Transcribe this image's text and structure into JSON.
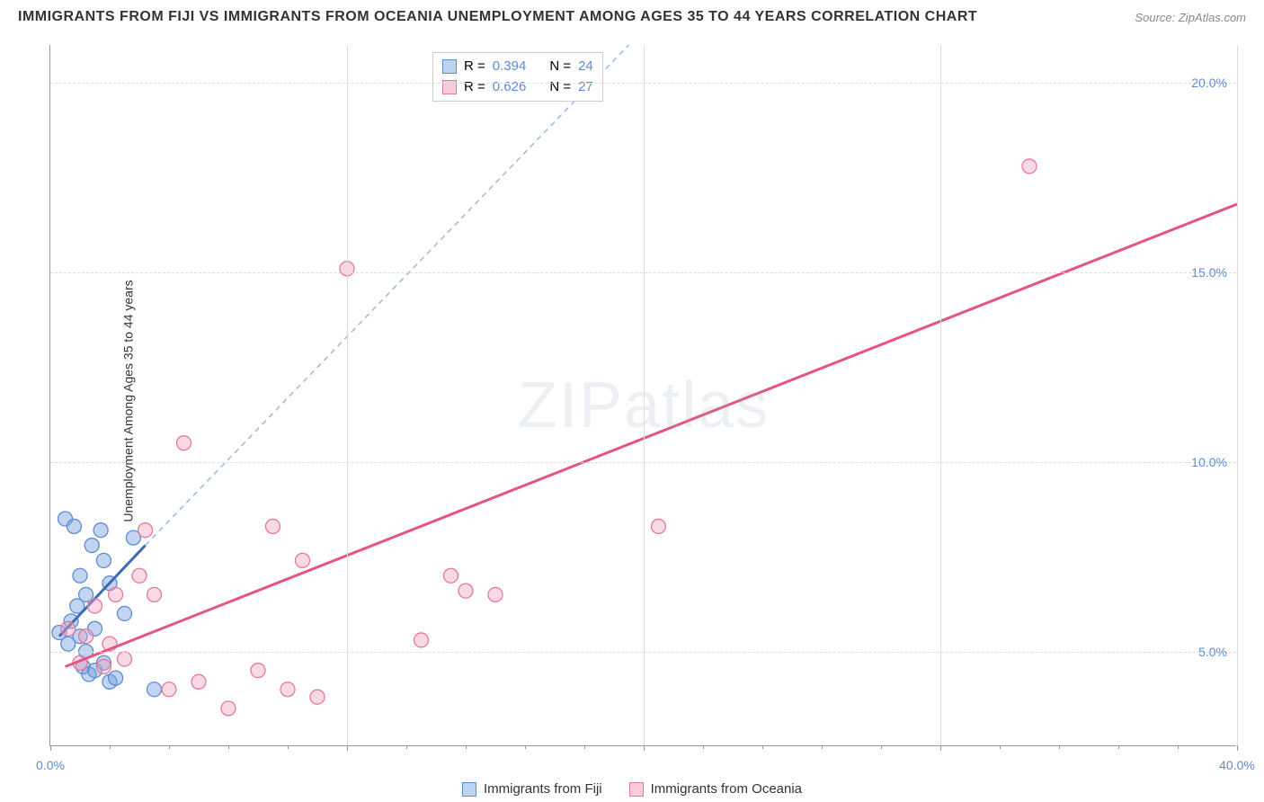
{
  "title": "IMMIGRANTS FROM FIJI VS IMMIGRANTS FROM OCEANIA UNEMPLOYMENT AMONG AGES 35 TO 44 YEARS CORRELATION CHART",
  "source": "Source: ZipAtlas.com",
  "y_axis_label": "Unemployment Among Ages 35 to 44 years",
  "watermark": "ZIPatlas",
  "chart": {
    "type": "scatter",
    "x_domain": [
      0,
      40
    ],
    "y_domain": [
      2.5,
      21
    ],
    "y_ticks": [
      5,
      10,
      15,
      20
    ],
    "y_tick_labels": [
      "5.0%",
      "10.0%",
      "15.0%",
      "20.0%"
    ],
    "x_ticks": [
      0,
      10,
      20,
      30,
      40
    ],
    "x_tick_labels": [
      "0.0%",
      "",
      "",
      "",
      "40.0%"
    ],
    "x_minor_ticks": [
      2,
      4,
      6,
      8,
      12,
      14,
      16,
      18,
      22,
      24,
      26,
      28,
      32,
      34,
      36,
      38
    ],
    "grid_color": "#dddddd",
    "background_color": "#ffffff",
    "axis_color": "#999999",
    "series": [
      {
        "name": "Immigrants from Fiji",
        "marker_fill": "rgba(120,160,220,0.45)",
        "marker_stroke": "#5b8dd6",
        "marker_radius": 8,
        "line_solid_color": "#3d6bb5",
        "line_dash_color": "#9bb8e0",
        "swatch_fill": "#bdd4f0",
        "swatch_border": "#5b8dd6",
        "R": "0.394",
        "N": "24",
        "points": [
          [
            0.3,
            5.5
          ],
          [
            0.5,
            8.5
          ],
          [
            0.6,
            5.2
          ],
          [
            0.7,
            5.8
          ],
          [
            0.8,
            8.3
          ],
          [
            0.9,
            6.2
          ],
          [
            1.0,
            5.4
          ],
          [
            1.0,
            7.0
          ],
          [
            1.1,
            4.6
          ],
          [
            1.2,
            5.0
          ],
          [
            1.2,
            6.5
          ],
          [
            1.3,
            4.4
          ],
          [
            1.4,
            7.8
          ],
          [
            1.5,
            4.5
          ],
          [
            1.5,
            5.6
          ],
          [
            1.7,
            8.2
          ],
          [
            1.8,
            4.7
          ],
          [
            1.8,
            7.4
          ],
          [
            2.0,
            4.2
          ],
          [
            2.0,
            6.8
          ],
          [
            2.2,
            4.3
          ],
          [
            2.5,
            6.0
          ],
          [
            2.8,
            8.0
          ],
          [
            3.5,
            4.0
          ]
        ],
        "trend_solid": {
          "x1": 0.3,
          "y1": 5.4,
          "x2": 3.2,
          "y2": 7.8
        },
        "trend_dash": {
          "x1": 3.2,
          "y1": 7.8,
          "x2": 19.5,
          "y2": 21.0
        }
      },
      {
        "name": "Immigrants from Oceania",
        "marker_fill": "rgba(240,160,190,0.4)",
        "marker_stroke": "#e6779d",
        "marker_radius": 8,
        "line_solid_color": "#e6557f",
        "line_dash_color": "#f0a8c0",
        "swatch_fill": "#f5cdd9",
        "swatch_border": "#e6779d",
        "R": "0.626",
        "N": "27",
        "points": [
          [
            0.6,
            5.6
          ],
          [
            1.0,
            4.7
          ],
          [
            1.2,
            5.4
          ],
          [
            1.5,
            6.2
          ],
          [
            1.8,
            4.6
          ],
          [
            2.0,
            5.2
          ],
          [
            2.2,
            6.5
          ],
          [
            2.5,
            4.8
          ],
          [
            3.0,
            7.0
          ],
          [
            3.2,
            8.2
          ],
          [
            3.5,
            6.5
          ],
          [
            4.0,
            4.0
          ],
          [
            4.5,
            10.5
          ],
          [
            5.0,
            4.2
          ],
          [
            6.0,
            3.5
          ],
          [
            7.0,
            4.5
          ],
          [
            7.5,
            8.3
          ],
          [
            8.0,
            4.0
          ],
          [
            8.5,
            7.4
          ],
          [
            9.0,
            3.8
          ],
          [
            10.0,
            15.1
          ],
          [
            12.5,
            5.3
          ],
          [
            13.5,
            7.0
          ],
          [
            14.0,
            6.6
          ],
          [
            15.0,
            6.5
          ],
          [
            20.5,
            8.3
          ],
          [
            33.0,
            17.8
          ]
        ],
        "trend_solid": {
          "x1": 0.5,
          "y1": 4.6,
          "x2": 40.0,
          "y2": 16.8
        },
        "trend_dash": null
      }
    ]
  },
  "stats_box": {
    "rows": [
      {
        "swatch_fill": "#bdd4f0",
        "swatch_border": "#5b8dd6",
        "r_label": "R =",
        "r_val": "0.394",
        "n_label": "N =",
        "n_val": "24"
      },
      {
        "swatch_fill": "#f5cdd9",
        "swatch_border": "#e6779d",
        "r_label": "R =",
        "r_val": "0.626",
        "n_label": "N =",
        "n_val": "27"
      }
    ]
  },
  "bottom_legend": [
    {
      "swatch_fill": "#bdd4f0",
      "swatch_border": "#5b8dd6",
      "label": "Immigrants from Fiji"
    },
    {
      "swatch_fill": "#f5cdd9",
      "swatch_border": "#e6779d",
      "label": "Immigrants from Oceania"
    }
  ]
}
